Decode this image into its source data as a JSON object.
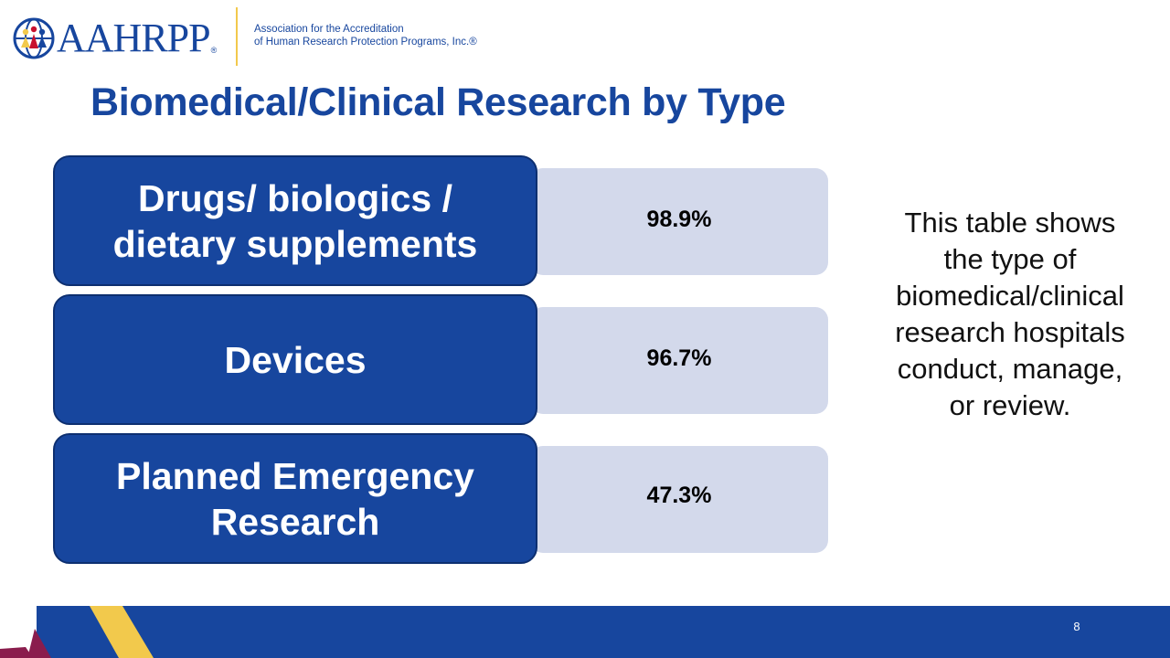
{
  "header": {
    "logo_text": "AAHRPP",
    "logo_reg": "®",
    "tagline_line1": "Association for the Accreditation",
    "tagline_line2": "of Human Research Protection Programs, Inc.®"
  },
  "slide": {
    "title": "Biomedical/Clinical Research by Type",
    "page_number": "8"
  },
  "rows": [
    {
      "label_line1": "Drugs/ biologics /",
      "label_line2": "dietary supplements",
      "value": "98.9%"
    },
    {
      "label_line1": "Devices",
      "label_line2": "",
      "value": "96.7%"
    },
    {
      "label_line1": "Planned Emergency",
      "label_line2": "Research",
      "value": "47.3%"
    }
  ],
  "side_note": {
    "lines": [
      "This table shows",
      "the type of",
      "biomedical/clinical",
      "research hospitals",
      "conduct, manage,",
      "or review."
    ]
  },
  "colors": {
    "brand_blue": "#17469e",
    "value_box": "#d3d9eb",
    "accent_yellow": "#f2c94c",
    "accent_red": "#c8102e",
    "accent_purple": "#8a1d4d"
  }
}
